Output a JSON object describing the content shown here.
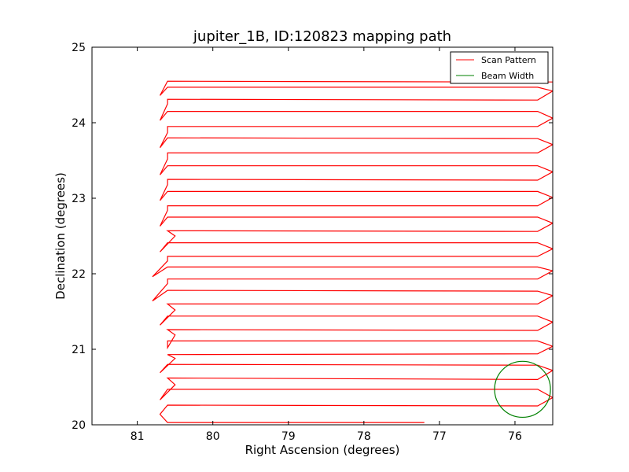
{
  "chart_data": {
    "type": "line",
    "title": "jupiter_1B, ID:120823 mapping path",
    "xlabel": "Right Ascension (degrees)",
    "ylabel": "Declination (degrees)",
    "xlim": [
      81.6,
      75.5
    ],
    "ylim": [
      20,
      25
    ],
    "xticks": [
      81,
      80,
      79,
      78,
      77,
      76
    ],
    "yticks": [
      20,
      21,
      22,
      23,
      24,
      25
    ],
    "xtick_labels": [
      "81",
      "80",
      "79",
      "78",
      "77",
      "76"
    ],
    "ytick_labels": [
      "20",
      "21",
      "22",
      "23",
      "24",
      "25"
    ],
    "grid": false,
    "legend_position": "top-right",
    "series": [
      {
        "name": "Scan Pattern",
        "color": "#ff0000",
        "points": [
          [
            77.2,
            20.03
          ],
          [
            80.6,
            20.03
          ],
          [
            80.7,
            20.14
          ],
          [
            80.6,
            20.26
          ],
          [
            75.7,
            20.25
          ],
          [
            75.5,
            20.36
          ],
          [
            75.7,
            20.47
          ],
          [
            80.6,
            20.47
          ],
          [
            80.7,
            20.33
          ],
          [
            80.5,
            20.53
          ],
          [
            80.6,
            20.62
          ],
          [
            75.7,
            20.6
          ],
          [
            75.5,
            20.72
          ],
          [
            75.7,
            20.79
          ],
          [
            80.6,
            20.8
          ],
          [
            80.7,
            20.69
          ],
          [
            80.5,
            20.88
          ],
          [
            80.6,
            20.93
          ],
          [
            75.7,
            20.94
          ],
          [
            75.5,
            21.04
          ],
          [
            75.7,
            21.11
          ],
          [
            80.6,
            21.11
          ],
          [
            80.6,
            21.02
          ],
          [
            80.5,
            21.19
          ],
          [
            80.6,
            21.26
          ],
          [
            75.7,
            21.25
          ],
          [
            75.5,
            21.36
          ],
          [
            75.7,
            21.44
          ],
          [
            80.6,
            21.44
          ],
          [
            80.7,
            21.32
          ],
          [
            80.5,
            21.52
          ],
          [
            80.6,
            21.6
          ],
          [
            75.7,
            21.6
          ],
          [
            75.5,
            21.71
          ],
          [
            75.7,
            21.77
          ],
          [
            80.6,
            21.78
          ],
          [
            80.8,
            21.64
          ],
          [
            80.6,
            21.87
          ],
          [
            80.6,
            21.93
          ],
          [
            75.7,
            21.93
          ],
          [
            75.5,
            22.04
          ],
          [
            75.7,
            22.09
          ],
          [
            80.6,
            22.09
          ],
          [
            80.8,
            21.96
          ],
          [
            80.6,
            22.17
          ],
          [
            80.6,
            22.23
          ],
          [
            75.7,
            22.23
          ],
          [
            75.5,
            22.33
          ],
          [
            75.7,
            22.41
          ],
          [
            80.6,
            22.41
          ],
          [
            80.7,
            22.29
          ],
          [
            80.5,
            22.5
          ],
          [
            80.6,
            22.57
          ],
          [
            75.7,
            22.56
          ],
          [
            75.5,
            22.67
          ],
          [
            75.7,
            22.75
          ],
          [
            80.6,
            22.75
          ],
          [
            80.7,
            22.63
          ],
          [
            80.6,
            22.84
          ],
          [
            80.6,
            22.9
          ],
          [
            75.7,
            22.9
          ],
          [
            75.5,
            23.01
          ],
          [
            75.7,
            23.09
          ],
          [
            80.6,
            23.09
          ],
          [
            80.7,
            22.97
          ],
          [
            80.6,
            23.18
          ],
          [
            80.6,
            23.25
          ],
          [
            75.7,
            23.24
          ],
          [
            75.5,
            23.35
          ],
          [
            75.7,
            23.43
          ],
          [
            80.6,
            23.43
          ],
          [
            80.7,
            23.31
          ],
          [
            80.6,
            23.52
          ],
          [
            80.6,
            23.6
          ],
          [
            75.7,
            23.6
          ],
          [
            75.5,
            23.71
          ],
          [
            75.7,
            23.79
          ],
          [
            80.6,
            23.8
          ],
          [
            80.7,
            23.67
          ],
          [
            80.6,
            23.87
          ],
          [
            80.6,
            23.95
          ],
          [
            75.7,
            23.95
          ],
          [
            75.5,
            24.06
          ],
          [
            75.7,
            24.15
          ],
          [
            80.6,
            24.15
          ],
          [
            80.7,
            24.03
          ],
          [
            80.6,
            24.25
          ],
          [
            80.6,
            24.31
          ],
          [
            75.7,
            24.3
          ],
          [
            75.5,
            24.42
          ],
          [
            75.7,
            24.47
          ],
          [
            80.6,
            24.47
          ],
          [
            80.7,
            24.36
          ],
          [
            80.6,
            24.55
          ],
          [
            76.1,
            24.54
          ],
          [
            75.5,
            24.54
          ]
        ]
      },
      {
        "name": "Beam Width",
        "color": "#008000",
        "center": [
          75.9,
          20.47
        ],
        "radius": 0.37
      }
    ]
  }
}
